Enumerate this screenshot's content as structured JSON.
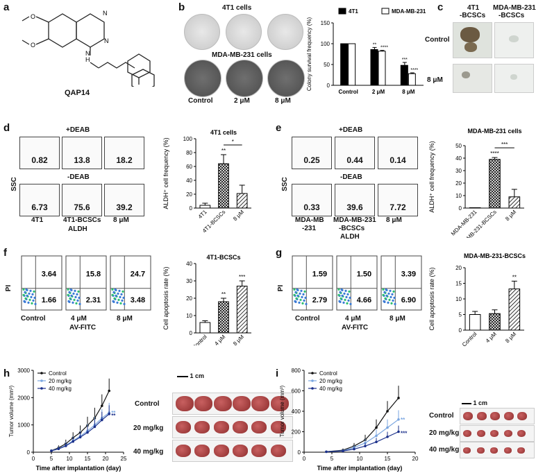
{
  "panels": {
    "a": {
      "letter": "a",
      "compound": "QAP14"
    },
    "b": {
      "letter": "b",
      "row1": "4T1 cells",
      "row2": "MDA-MB-231 cells",
      "doses": [
        "Control",
        "2 μM",
        "8 μM"
      ],
      "chart_ylabel": "Colony survival frequency (%)",
      "legend": [
        "4T1",
        "MDA-MB-231"
      ]
    },
    "c": {
      "letter": "c",
      "col1": "4T1\n-BCSCs",
      "col1a": "4T1",
      "col1b": "-BCSCs",
      "col2a": "MDA-MB-231",
      "col2b": "-BCSCs",
      "rows": [
        "Control",
        "8 μM"
      ]
    },
    "d": {
      "letter": "d",
      "top": "+DEAB",
      "bottom": "-DEAB",
      "yaxis": "SSC",
      "xaxis": "ALDH",
      "plus_vals": [
        "0.82",
        "13.8",
        "18.2"
      ],
      "minus_vals": [
        "6.73",
        "75.6",
        "39.2"
      ],
      "cols": [
        "4T1",
        "4T1-BCSCs",
        "8 μM"
      ],
      "chart_title": "4T1 cells",
      "chart_ylabel": "ALDH⁺ cell frequency (%)"
    },
    "e": {
      "letter": "e",
      "top": "+DEAB",
      "bottom": "-DEAB",
      "yaxis": "SSC",
      "xaxis": "ALDH",
      "plus_vals": [
        "0.25",
        "0.44",
        "0.14"
      ],
      "minus_vals": [
        "0.33",
        "39.6",
        "7.72"
      ],
      "cols_a": [
        "MDA-MB",
        "MDA-MB-231",
        "8 μM"
      ],
      "cols_b": [
        "-231",
        "-BCSCs",
        ""
      ],
      "chart_title": "MDA-MB-231 cells",
      "chart_ylabel": "ALDH⁺ cell frequency (%)"
    },
    "f": {
      "letter": "f",
      "yaxis": "PI",
      "xaxis": "AV-FITC",
      "top_vals": [
        "3.64",
        "15.8",
        "24.7"
      ],
      "bottom_vals": [
        "1.66",
        "2.31",
        "3.48"
      ],
      "cols": [
        "Control",
        "4 μM",
        "8 μM"
      ],
      "chart_title": "4T1-BCSCs",
      "chart_ylabel": "Cell apoptosis rate (%)"
    },
    "g": {
      "letter": "g",
      "yaxis": "PI",
      "xaxis": "AV-FITC",
      "top_vals": [
        "1.59",
        "1.50",
        "3.39"
      ],
      "bottom_vals": [
        "2.79",
        "4.66",
        "6.90"
      ],
      "cols": [
        "Control",
        "4 μM",
        "8 μM"
      ],
      "chart_title": "MDA-MB-231-BCSCs",
      "chart_ylabel": "Cell apoptosis rate (%)"
    },
    "h": {
      "letter": "h",
      "xlabel": "Time after implantation (day)",
      "ylabel": "Tumor volume (mm³)",
      "legend": [
        "Control",
        "20 mg/kg",
        "40 mg/kg"
      ],
      "scale": "1 cm",
      "rows": [
        "Control",
        "20 mg/kg",
        "40 mg/kg"
      ]
    },
    "i": {
      "letter": "i",
      "xlabel": "Time after implantation (day)",
      "ylabel": "Tumor volume (mm³)",
      "legend": [
        "Control",
        "20 mg/kg",
        "40 mg/kg"
      ],
      "scale": "1 cm",
      "rows": [
        "Control",
        "20 mg/kg",
        "40 mg/kg"
      ]
    }
  },
  "colors": {
    "control": "#111111",
    "mid": "#7aa6e0",
    "high": "#1a2f8a"
  },
  "chart_data": [
    {
      "id": "b",
      "type": "bar",
      "categories": [
        "Control",
        "2 μM",
        "8 μM"
      ],
      "series": [
        {
          "name": "4T1",
          "values": [
            100,
            86,
            48
          ]
        },
        {
          "name": "MDA-MB-231",
          "values": [
            100,
            82,
            28
          ]
        }
      ],
      "errors": [
        [
          0,
          5,
          7
        ],
        [
          0,
          2,
          2
        ]
      ],
      "ylim": [
        0,
        150
      ],
      "yticks": [
        0,
        50,
        100,
        150
      ],
      "stars": [
        [
          "",
          "**",
          "***"
        ],
        [
          "",
          "****",
          "****"
        ]
      ]
    },
    {
      "id": "d",
      "type": "bar",
      "categories": [
        "4T1",
        "4T1-BCSCs",
        "8 μM"
      ],
      "values": [
        4,
        64,
        21
      ],
      "errors": [
        3,
        13,
        12
      ],
      "ylim": [
        0,
        100
      ],
      "yticks": [
        0,
        20,
        40,
        60,
        80,
        100
      ],
      "stars": [
        "",
        "**",
        ""
      ],
      "bracket_star": "*"
    },
    {
      "id": "e",
      "type": "bar",
      "categories": [
        "MDA-MB-231",
        "MDA-MB-231-BCSCs",
        "8 μM"
      ],
      "values": [
        0.3,
        39,
        9
      ],
      "errors": [
        0,
        1.5,
        6
      ],
      "ylim": [
        0,
        50
      ],
      "yticks": [
        0,
        10,
        20,
        30,
        40,
        50
      ],
      "stars": [
        "",
        "****",
        ""
      ],
      "bracket_star": "***"
    },
    {
      "id": "f",
      "type": "bar",
      "categories": [
        "Control",
        "4 μM",
        "8 μM"
      ],
      "values": [
        6,
        18,
        27
      ],
      "errors": [
        1,
        2,
        3
      ],
      "ylim": [
        0,
        40
      ],
      "yticks": [
        0,
        10,
        20,
        30,
        40
      ],
      "stars": [
        "",
        "**",
        "***"
      ]
    },
    {
      "id": "g",
      "type": "bar",
      "categories": [
        "Control",
        "4 μM",
        "8 μM"
      ],
      "values": [
        5,
        5.3,
        13.2
      ],
      "errors": [
        1,
        1.2,
        2.5
      ],
      "ylim": [
        0,
        20
      ],
      "yticks": [
        0,
        5,
        10,
        15,
        20
      ],
      "stars": [
        "",
        "",
        "**"
      ]
    },
    {
      "id": "h",
      "type": "line",
      "x": [
        5,
        7,
        9,
        11,
        13,
        15,
        17,
        19,
        21
      ],
      "series": [
        {
          "name": "Control",
          "values": [
            60,
            160,
            310,
            530,
            720,
            980,
            1250,
            1700,
            2250
          ],
          "errors": [
            40,
            90,
            150,
            200,
            260,
            320,
            380,
            420,
            450
          ]
        },
        {
          "name": "20 mg/kg",
          "values": [
            55,
            130,
            250,
            420,
            590,
            780,
            1000,
            1250,
            1450
          ],
          "errors": [
            40,
            80,
            130,
            170,
            210,
            260,
            300,
            330,
            360
          ]
        },
        {
          "name": "40 mg/kg",
          "values": [
            50,
            120,
            230,
            390,
            550,
            720,
            930,
            1180,
            1400
          ],
          "errors": [
            30,
            70,
            110,
            150,
            190,
            230,
            270,
            300,
            320
          ]
        }
      ],
      "xlim": [
        0,
        25
      ],
      "ylim": [
        0,
        3000
      ],
      "xticks": [
        0,
        5,
        10,
        15,
        20,
        25
      ],
      "yticks": [
        0,
        1000,
        2000,
        3000
      ],
      "stars": [
        {
          "series": "20 mg/kg",
          "text": "**"
        },
        {
          "series": "40 mg/kg",
          "text": "**"
        }
      ]
    },
    {
      "id": "i",
      "type": "line",
      "x": [
        4,
        7,
        9,
        11,
        13,
        15,
        17
      ],
      "series": [
        {
          "name": "Control",
          "values": [
            5,
            20,
            60,
            120,
            240,
            400,
            530
          ],
          "errors": [
            5,
            15,
            30,
            50,
            80,
            100,
            120
          ]
        },
        {
          "name": "20 mg/kg",
          "values": [
            5,
            15,
            45,
            90,
            160,
            240,
            320
          ],
          "errors": [
            5,
            12,
            25,
            40,
            60,
            80,
            90
          ]
        },
        {
          "name": "40 mg/kg",
          "values": [
            4,
            12,
            30,
            60,
            100,
            150,
            200
          ],
          "errors": [
            4,
            10,
            20,
            30,
            40,
            50,
            60
          ]
        }
      ],
      "xlim": [
        0,
        20
      ],
      "ylim": [
        0,
        800
      ],
      "xticks": [
        0,
        5,
        10,
        15,
        20
      ],
      "yticks": [
        0,
        200,
        400,
        600,
        800
      ],
      "stars": [
        {
          "series": "20 mg/kg",
          "text": "**"
        },
        {
          "series": "40 mg/kg",
          "text": "***"
        }
      ]
    }
  ]
}
